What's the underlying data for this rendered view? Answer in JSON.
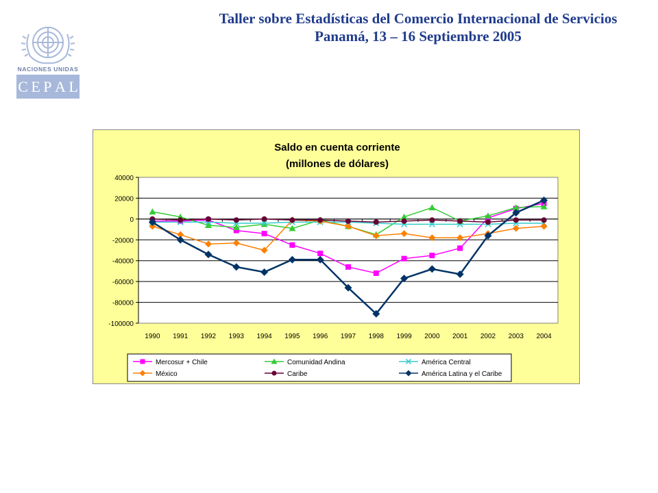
{
  "header": {
    "line1": "Taller sobre Estadísticas del Comercio Internacional de Servicios",
    "line2": "Panamá, 13 – 16 Septiembre 2005"
  },
  "logo": {
    "org_text": "NACIONES UNIDAS",
    "letters": [
      "C",
      "E",
      "P",
      "A",
      "L"
    ]
  },
  "chart_data": {
    "type": "line",
    "title": "Saldo en cuenta corriente",
    "subtitle": "(millones de dólares)",
    "xlabel": "",
    "ylabel": "",
    "x": [
      "1990",
      "1991",
      "1992",
      "1993",
      "1994",
      "1995",
      "1996",
      "1997",
      "1998",
      "1999",
      "2000",
      "2001",
      "2002",
      "2003",
      "2004"
    ],
    "ylim": [
      -100000,
      40000
    ],
    "yticks": [
      40000,
      20000,
      0,
      -20000,
      -40000,
      -60000,
      -80000,
      -100000
    ],
    "ytick_labels": [
      "40000",
      "20000",
      "0",
      "-20000",
      "-40000",
      "-60000",
      "-80000",
      "-100000"
    ],
    "grid": true,
    "legend_position": "bottom",
    "series": [
      {
        "name": "Mercosur + Chile",
        "color": "#FF00FF",
        "marker": "square",
        "values": [
          -2000,
          -2000,
          -1000,
          -11000,
          -14000,
          -25000,
          -33000,
          -46000,
          -52000,
          -38000,
          -35000,
          -28000,
          1000,
          10000,
          15000
        ]
      },
      {
        "name": "Comunidad Andina",
        "color": "#33CC33",
        "marker": "triangle",
        "values": [
          7000,
          2000,
          -6000,
          -8000,
          -5000,
          -9000,
          -1000,
          -7000,
          -15000,
          2000,
          11000,
          -2000,
          3000,
          11000,
          12000
        ]
      },
      {
        "name": "América Central",
        "color": "#33CCCC",
        "marker": "x",
        "values": [
          -3000,
          -3000,
          -3000,
          -4000,
          -4000,
          -3000,
          -3000,
          -3000,
          -4000,
          -5000,
          -5000,
          -5000,
          -5000,
          -4000,
          -4000
        ]
      },
      {
        "name": "México",
        "color": "#FF8000",
        "marker": "diamond",
        "values": [
          -7000,
          -15000,
          -24000,
          -23000,
          -30000,
          -1000,
          -2000,
          -7000,
          -16000,
          -14000,
          -18000,
          -18000,
          -14000,
          -9000,
          -7000
        ]
      },
      {
        "name": "Caribe",
        "color": "#660033",
        "marker": "circle",
        "values": [
          0,
          -1000,
          0,
          -1000,
          0,
          -1000,
          -1000,
          -2000,
          -3000,
          -2000,
          -1000,
          -2000,
          -3000,
          -1000,
          -1000
        ]
      },
      {
        "name": "América Latina y el Caribe",
        "color": "#003366",
        "marker": "diamond",
        "values": [
          -3000,
          -20000,
          -34000,
          -46000,
          -51000,
          -39000,
          -39000,
          -66000,
          -91000,
          -57000,
          -48000,
          -53000,
          -16000,
          6000,
          18000
        ]
      }
    ]
  }
}
